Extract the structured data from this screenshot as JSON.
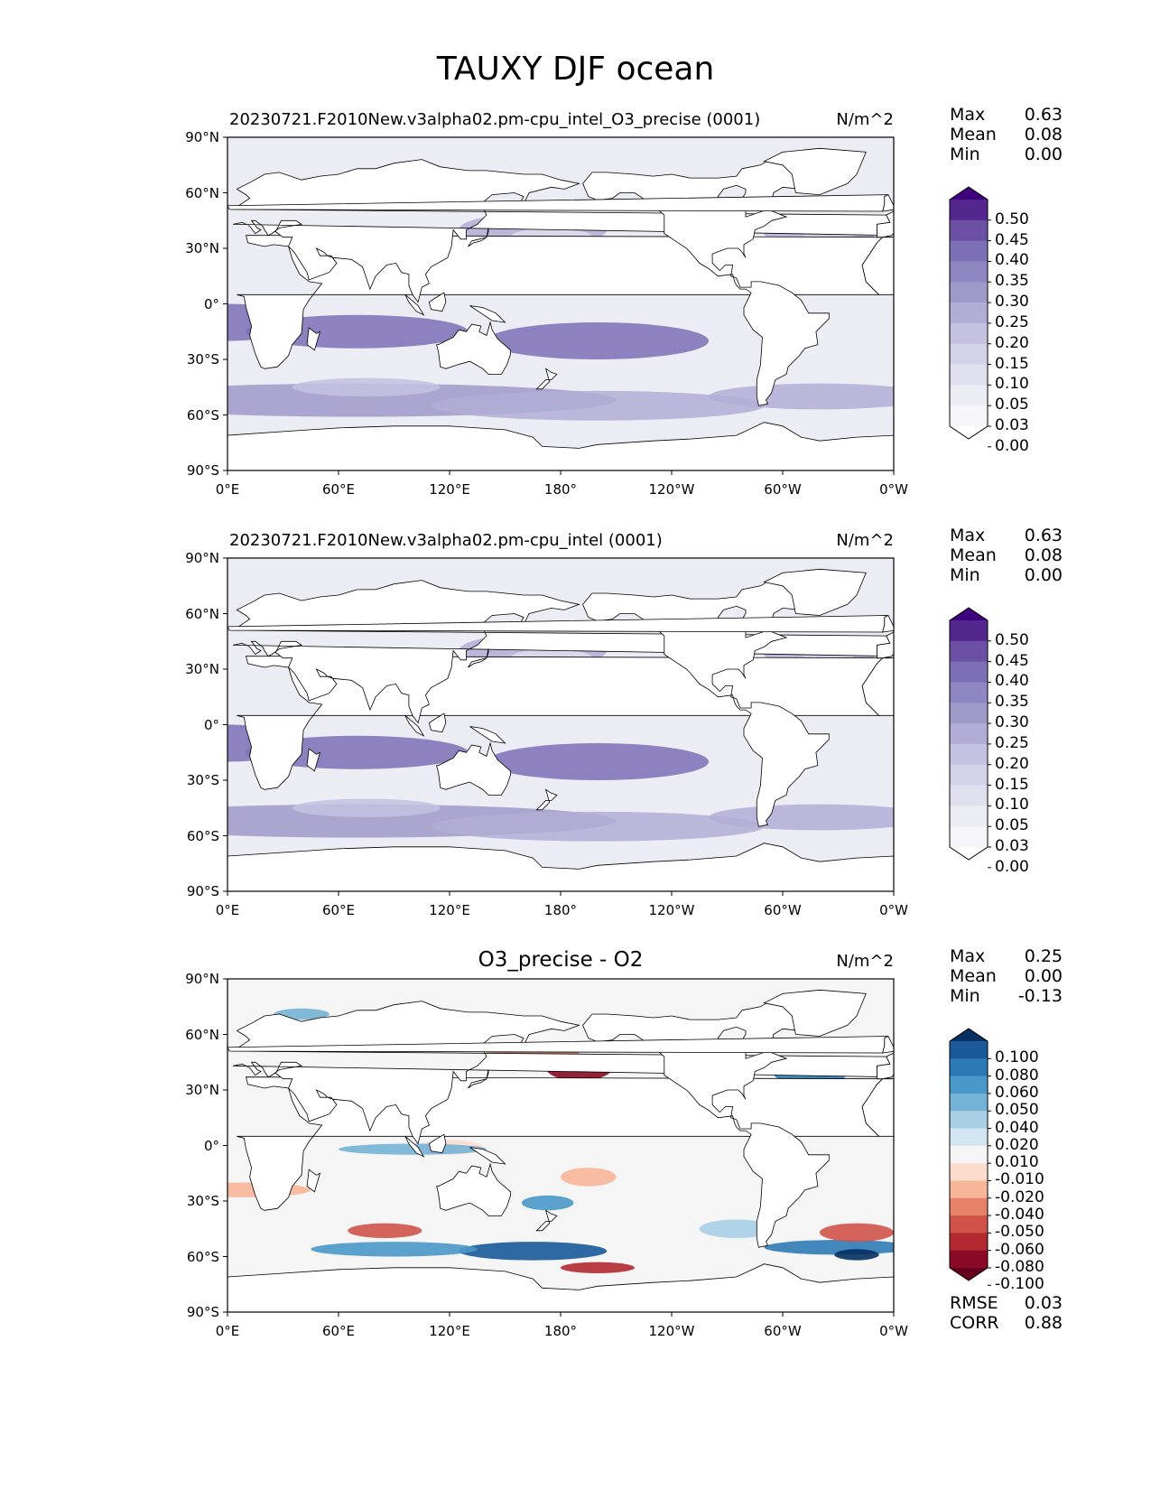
{
  "figure_title": "TAUXY DJF ocean",
  "x_ticks": [
    "0°E",
    "60°E",
    "120°E",
    "180°",
    "120°W",
    "60°W",
    "0°W"
  ],
  "y_ticks": [
    "90°N",
    "60°N",
    "30°N",
    "0°",
    "30°S",
    "60°S",
    "90°S"
  ],
  "stat_labels": {
    "max": "Max",
    "mean": "Mean",
    "min": "Min",
    "rmse": "RMSE",
    "corr": "CORR"
  },
  "panels": [
    {
      "title": "20230721.F2010New.v3alpha02.pm-cpu_intel_O3_precise (0001)",
      "units": "N/m^2",
      "stats": {
        "max": "0.63",
        "mean": "0.08",
        "min": "0.00"
      },
      "colorbar_levels": [
        "0.50",
        "0.45",
        "0.40",
        "0.35",
        "0.30",
        "0.25",
        "0.20",
        "0.15",
        "0.10",
        "0.05",
        "0.03",
        "0.00"
      ],
      "colorbar_colors": [
        "#3f007d",
        "#54278f",
        "#6a51a3",
        "#7c6fb5",
        "#8d86c0",
        "#9e9ac8",
        "#b1aed6",
        "#c3c2e0",
        "#d2d2e8",
        "#dfdfef",
        "#ececf5",
        "#f6f5fa",
        "#ffffff"
      ]
    },
    {
      "title": "20230721.F2010New.v3alpha02.pm-cpu_intel (0001)",
      "units": "N/m^2",
      "stats": {
        "max": "0.63",
        "mean": "0.08",
        "min": "0.00"
      },
      "colorbar_levels": [
        "0.50",
        "0.45",
        "0.40",
        "0.35",
        "0.30",
        "0.25",
        "0.20",
        "0.15",
        "0.10",
        "0.05",
        "0.03",
        "0.00"
      ],
      "colorbar_colors": [
        "#3f007d",
        "#54278f",
        "#6a51a3",
        "#7c6fb5",
        "#8d86c0",
        "#9e9ac8",
        "#b1aed6",
        "#c3c2e0",
        "#d2d2e8",
        "#dfdfef",
        "#ececf5",
        "#f6f5fa",
        "#ffffff"
      ]
    },
    {
      "title": "O3_precise - O2",
      "units": "N/m^2",
      "stats": {
        "max": "0.25",
        "mean": "0.00",
        "min": "-0.13"
      },
      "colorbar_levels": [
        "0.100",
        "0.080",
        "0.060",
        "0.050",
        "0.040",
        "0.020",
        "0.010",
        "-0.010",
        "-0.020",
        "-0.040",
        "-0.050",
        "-0.060",
        "-0.080",
        "-0.100"
      ],
      "colorbar_colors": [
        "#053061",
        "#1a5a9a",
        "#2d7bb6",
        "#4a98c9",
        "#74b2d6",
        "#a9cfe5",
        "#d4e6f1",
        "#f5f5f5",
        "#fbdccd",
        "#f7b699",
        "#e58268",
        "#d0534a",
        "#b22932",
        "#8a0a25",
        "#67001f"
      ],
      "error_stats": {
        "rmse": "0.03",
        "corr": "0.88"
      }
    }
  ]
}
